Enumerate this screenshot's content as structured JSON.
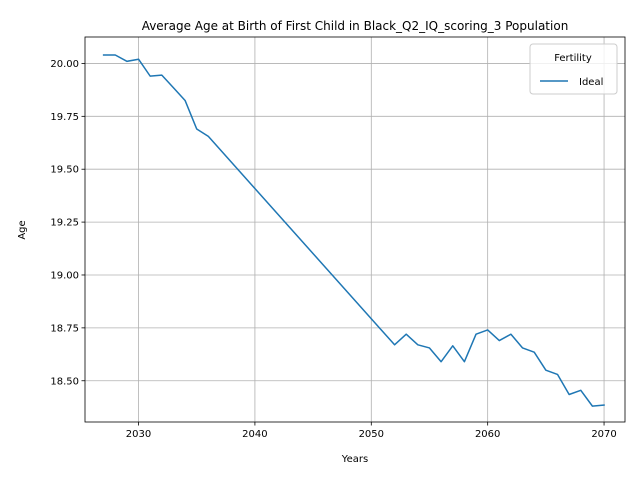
{
  "chart_data": {
    "type": "line",
    "title": "Average Age at Birth of First Child in Black_Q2_IQ_scoring_3 Population",
    "xlabel": "Years",
    "ylabel": "Age",
    "xlim": [
      2025.4,
      2071.8
    ],
    "ylim": [
      18.305,
      20.125
    ],
    "xticks": [
      2030,
      2040,
      2050,
      2060,
      2070
    ],
    "yticks": [
      18.5,
      18.75,
      19.0,
      19.25,
      19.5,
      19.75,
      20.0
    ],
    "ytick_labels": [
      "18.50",
      "18.75",
      "19.00",
      "19.25",
      "19.50",
      "19.75",
      "20.00"
    ],
    "grid": true,
    "legend": {
      "title": "Fertility",
      "position": "top-right"
    },
    "series": [
      {
        "name": "Ideal",
        "color": "#1f77b4",
        "x": [
          2027,
          2028,
          2029,
          2030,
          2031,
          2032,
          2033,
          2034,
          2035,
          2036,
          2052,
          2053,
          2054,
          2055,
          2056,
          2057,
          2058,
          2059,
          2060,
          2061,
          2062,
          2063,
          2064,
          2065,
          2066,
          2067,
          2068,
          2069,
          2070
        ],
        "values": [
          20.04,
          20.04,
          20.01,
          20.02,
          19.94,
          19.945,
          19.885,
          19.825,
          19.69,
          19.655,
          18.67,
          18.72,
          18.67,
          18.655,
          18.59,
          18.665,
          18.59,
          18.72,
          18.74,
          18.69,
          18.72,
          18.655,
          18.635,
          18.55,
          18.53,
          18.435,
          18.455,
          18.38,
          18.385
        ]
      }
    ]
  }
}
